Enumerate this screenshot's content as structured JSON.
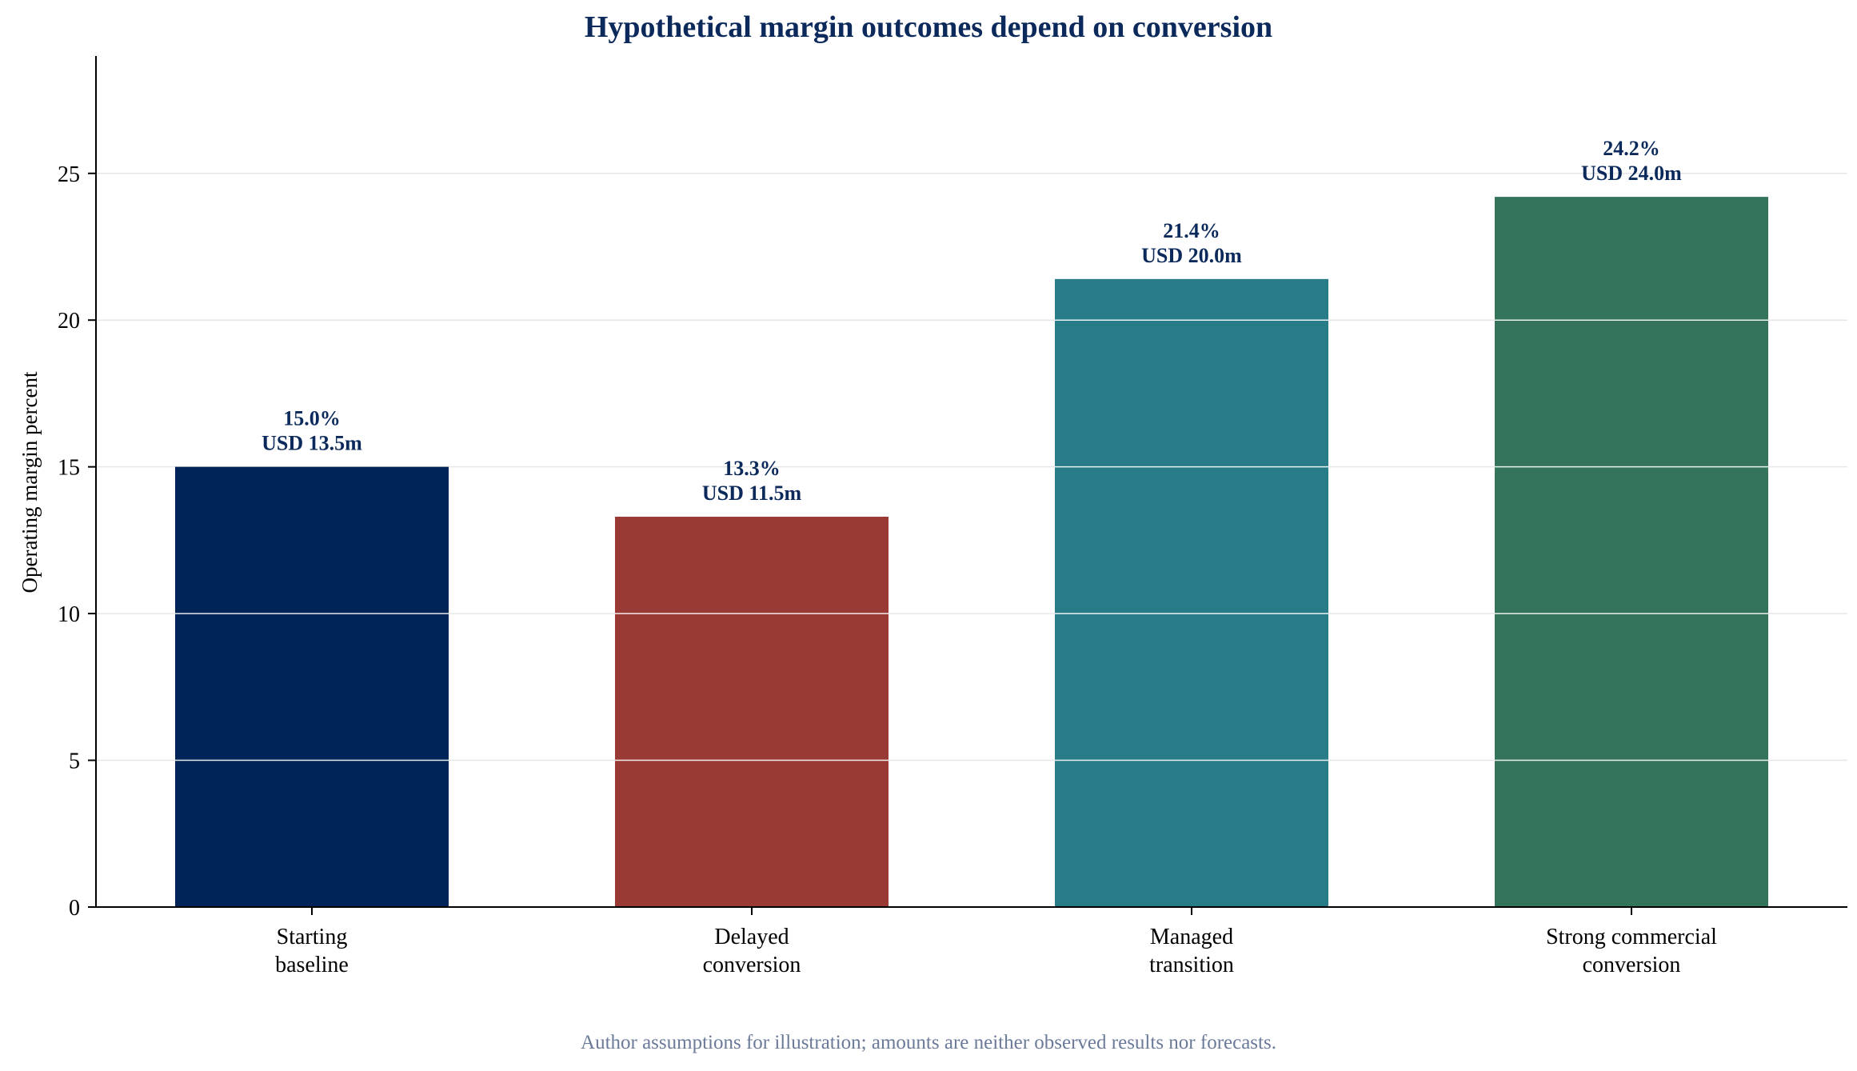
{
  "chart_data": {
    "type": "bar",
    "title": "Hypothetical margin outcomes depend on conversion",
    "ylabel": "Operating margin percent",
    "xlabel": "",
    "ylim": [
      0,
      29
    ],
    "yticks": [
      0,
      5,
      10,
      15,
      20,
      25
    ],
    "grid": true,
    "categories": [
      [
        "Starting",
        "baseline"
      ],
      [
        "Delayed",
        "conversion"
      ],
      [
        "Managed",
        "transition"
      ],
      [
        "Strong commercial",
        "conversion"
      ]
    ],
    "values": [
      15.0,
      13.3,
      21.4,
      24.2
    ],
    "data_labels": [
      [
        "15.0%",
        "USD 13.5m"
      ],
      [
        "13.3%",
        "USD 11.5m"
      ],
      [
        "21.4%",
        "USD 20.0m"
      ],
      [
        "24.2%",
        "USD 24.0m"
      ]
    ],
    "colors": [
      "#002457",
      "#9a3a34",
      "#277c87",
      "#34745a"
    ],
    "label_color": "#0b2a5b",
    "footnote": "Author assumptions for illustration; amounts are neither observed results nor forecasts."
  }
}
